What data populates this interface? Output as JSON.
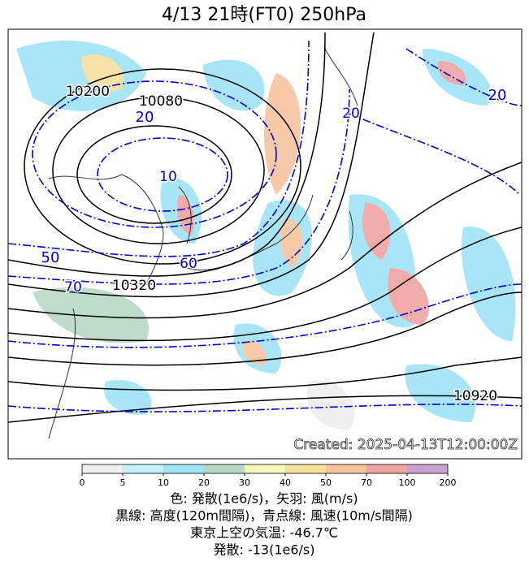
{
  "title": "4/13  21時(FT0)     250hPa",
  "map": {
    "contour_labels": [
      "10200",
      "10080",
      "20",
      "10",
      "50",
      "60",
      "70",
      "10320",
      "20",
      "20",
      "10920"
    ],
    "created": "Created: 2025-04-13T12:00:00Z"
  },
  "colorbar": {
    "ticks": [
      0,
      5,
      10,
      20,
      30,
      40,
      50,
      70,
      100,
      200
    ],
    "colors": [
      "#eeeeee",
      "#c6f1f9",
      "#9fe4f7",
      "#b7d9c4",
      "#f9f7b9",
      "#f7df9c",
      "#f6c59f",
      "#efa3a3",
      "#caa2cf"
    ]
  },
  "caption": [
    "色: 発散(1e6/s)，矢羽: 風(m/s)",
    "黒線: 高度(120m間隔)，青点線: 風速(10m/s間隔)",
    "東京上空の気温: -46.7℃",
    "発散: -13(1e6/s)"
  ]
}
